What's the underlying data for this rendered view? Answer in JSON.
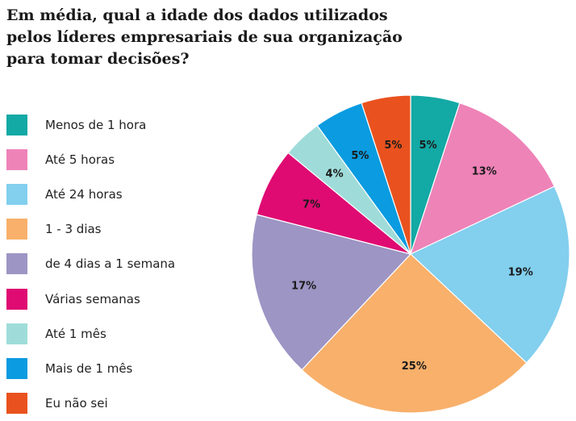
{
  "chart_data": {
    "type": "pie",
    "title": "Em média, qual a idade dos dados utilizados pelos líderes empresariais de sua organização para tomar decisões?",
    "legend_placement": "left",
    "slices": [
      {
        "label": "Menos de 1 hora",
        "value": 5,
        "value_label": "5%",
        "color": "#13a9a5"
      },
      {
        "label": "Até 5 horas",
        "value": 13,
        "value_label": "13%",
        "color": "#ee83b8"
      },
      {
        "label": "Até 24 horas",
        "value": 19,
        "value_label": "19%",
        "color": "#82cfee"
      },
      {
        "label": "1 - 3 dias",
        "value": 25,
        "value_label": "25%",
        "color": "#f8b06b"
      },
      {
        "label": "de 4 dias a 1 semana",
        "value": 17,
        "value_label": "17%",
        "color": "#9d95c4"
      },
      {
        "label": "Várias semanas",
        "value": 7,
        "value_label": "7%",
        "color": "#df0b72"
      },
      {
        "label": "Até 1 mês",
        "value": 4,
        "value_label": "4%",
        "color": "#9fdcd9"
      },
      {
        "label": "Mais de 1 mês",
        "value": 5,
        "value_label": "5%",
        "color": "#0a9be0"
      },
      {
        "label": "Eu não sei",
        "value": 5,
        "value_label": "5%",
        "color": "#e9521e"
      }
    ]
  }
}
